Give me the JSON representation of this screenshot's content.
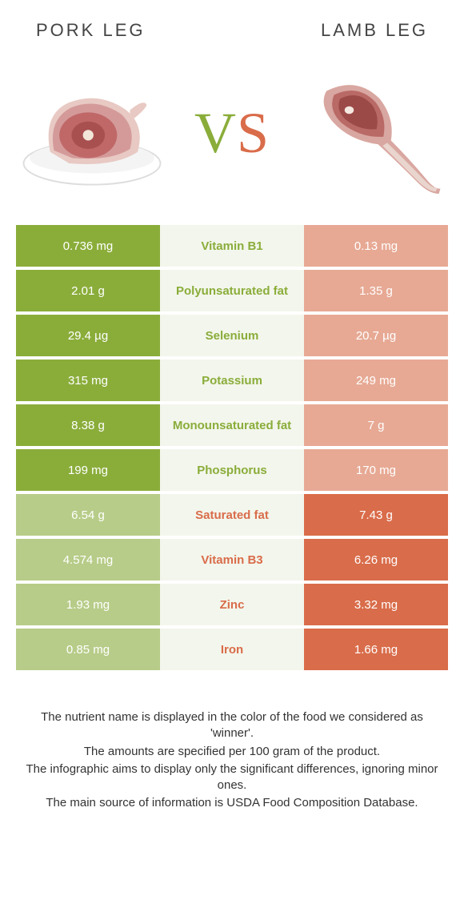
{
  "header": {
    "left_title": "Pork leg",
    "right_title": "Lamb leg"
  },
  "vs": {
    "letter_v": "V",
    "letter_s": "S"
  },
  "colors": {
    "left_winner": "#8aad3a",
    "right_winner": "#d96c4a",
    "left_loser": "#b7cc88",
    "right_loser": "#e7a994",
    "mid_bg": "#f3f6ec",
    "mid_text_left": "#8aad3a",
    "mid_text_right": "#d96c4a",
    "footnote_color": "#333333"
  },
  "table": {
    "rows": [
      {
        "nutrient": "Vitamin B1",
        "left": "0.736 mg",
        "right": "0.13 mg",
        "winner": "left"
      },
      {
        "nutrient": "Polyunsaturated fat",
        "left": "2.01 g",
        "right": "1.35 g",
        "winner": "left"
      },
      {
        "nutrient": "Selenium",
        "left": "29.4 µg",
        "right": "20.7 µg",
        "winner": "left"
      },
      {
        "nutrient": "Potassium",
        "left": "315 mg",
        "right": "249 mg",
        "winner": "left"
      },
      {
        "nutrient": "Monounsaturated fat",
        "left": "8.38 g",
        "right": "7 g",
        "winner": "left"
      },
      {
        "nutrient": "Phosphorus",
        "left": "199 mg",
        "right": "170 mg",
        "winner": "left"
      },
      {
        "nutrient": "Saturated fat",
        "left": "6.54 g",
        "right": "7.43 g",
        "winner": "right"
      },
      {
        "nutrient": "Vitamin B3",
        "left": "4.574 mg",
        "right": "6.26 mg",
        "winner": "right"
      },
      {
        "nutrient": "Zinc",
        "left": "1.93 mg",
        "right": "3.32 mg",
        "winner": "right"
      },
      {
        "nutrient": "Iron",
        "left": "0.85 mg",
        "right": "1.66 mg",
        "winner": "right"
      }
    ]
  },
  "footnotes": [
    "The nutrient name is displayed in the color of the food we considered as 'winner'.",
    "The amounts are specified per 100 gram of the product.",
    "The infographic aims to display only the significant differences, ignoring minor ones.",
    "The main source of information is USDA Food Composition Database."
  ]
}
